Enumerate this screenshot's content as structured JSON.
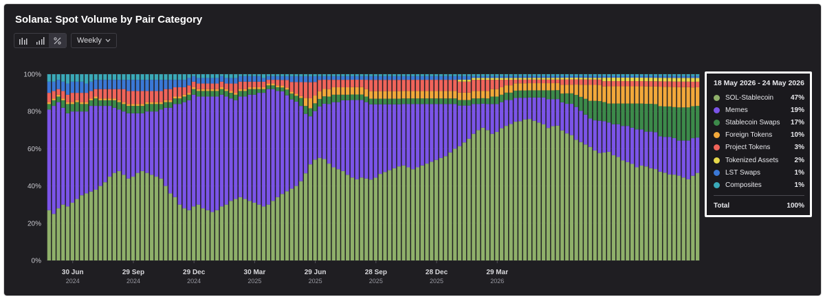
{
  "title": "Solana: Spot Volume by Pair Category",
  "toolbar": {
    "view_icons": [
      "bar-chart-icon",
      "stacked-bar-icon",
      "percent-icon"
    ],
    "interval": "Weekly"
  },
  "legend": {
    "date_range": "18 May 2026 - 24 May 2026",
    "items": [
      {
        "name": "SOL-Stablecoin",
        "value": "47%",
        "color": "#8fb06a"
      },
      {
        "name": "Memes",
        "value": "19%",
        "color": "#7b54e8"
      },
      {
        "name": "Stablecoin Swaps",
        "value": "17%",
        "color": "#3c8a4a"
      },
      {
        "name": "Foreign Tokens",
        "value": "10%",
        "color": "#f2a83a"
      },
      {
        "name": "Project Tokens",
        "value": "3%",
        "color": "#f0645a"
      },
      {
        "name": "Tokenized Assets",
        "value": "2%",
        "color": "#e6d84a"
      },
      {
        "name": "LST Swaps",
        "value": "1%",
        "color": "#3a78d6"
      },
      {
        "name": "Composites",
        "value": "1%",
        "color": "#3aa9b8"
      }
    ],
    "total_label": "Total",
    "total_value": "100%"
  },
  "chart_data": {
    "type": "bar",
    "stacked": "percent",
    "title": "Solana: Spot Volume by Pair Category",
    "ylim": [
      0,
      100
    ],
    "yticks": [
      "0%",
      "20%",
      "40%",
      "60%",
      "80%",
      "100%"
    ],
    "xticks": [
      {
        "label": "30 Jun",
        "year": "2024"
      },
      {
        "label": "29 Sep",
        "year": "2024"
      },
      {
        "label": "29 Dec",
        "year": "2024"
      },
      {
        "label": "30 Mar",
        "year": "2025"
      },
      {
        "label": "29 Jun",
        "year": "2025"
      },
      {
        "label": "28 Sep",
        "year": "2025"
      },
      {
        "label": "28 Dec",
        "year": "2025"
      },
      {
        "label": "29 Mar",
        "year": "2026"
      }
    ],
    "series": [
      {
        "name": "SOL-Stablecoin",
        "color": "#8fb06a",
        "values": [
          27,
          25,
          28,
          30,
          29,
          31,
          33,
          35,
          36,
          37,
          38,
          40,
          42,
          45,
          47,
          48,
          46,
          44,
          45,
          47,
          48,
          47,
          46,
          45,
          44,
          40,
          36,
          34,
          30,
          28,
          27,
          29,
          30,
          28,
          27,
          26,
          27,
          29,
          30,
          32,
          33,
          34,
          33,
          32,
          31,
          30,
          29,
          30,
          32,
          34,
          35,
          36,
          37,
          38,
          40,
          44,
          48,
          52,
          54,
          55,
          52,
          50,
          49,
          48,
          46,
          45,
          44,
          45,
          44,
          43,
          44,
          46,
          47,
          48,
          49,
          50,
          51,
          50,
          49,
          50,
          51,
          52,
          53,
          54,
          55,
          56,
          58,
          60,
          62,
          64,
          66,
          68,
          70,
          72,
          70,
          68,
          69,
          71,
          73,
          74,
          76,
          77,
          78,
          79,
          78,
          77,
          76,
          74,
          75,
          76,
          74,
          73,
          72,
          70,
          68,
          66,
          64,
          62,
          60,
          62,
          63,
          61,
          60,
          58,
          57,
          56,
          54,
          55,
          54,
          53,
          52,
          50,
          49,
          48,
          47,
          46,
          45,
          44,
          45,
          47
        ]
      },
      {
        "name": "Memes",
        "color": "#7b54e8",
        "values": [
          54,
          58,
          57,
          52,
          50,
          49,
          47,
          45,
          44,
          46,
          45,
          43,
          41,
          38,
          35,
          33,
          34,
          35,
          34,
          32,
          31,
          33,
          34,
          35,
          37,
          42,
          46,
          50,
          54,
          57,
          59,
          60,
          58,
          60,
          61,
          62,
          61,
          60,
          58,
          55,
          53,
          54,
          55,
          57,
          58,
          60,
          61,
          62,
          60,
          57,
          54,
          50,
          46,
          43,
          38,
          30,
          24,
          25,
          27,
          30,
          32,
          35,
          36,
          38,
          40,
          42,
          43,
          42,
          41,
          40,
          39,
          37,
          36,
          35,
          34,
          33,
          33,
          34,
          35,
          34,
          33,
          32,
          31,
          30,
          29,
          28,
          26,
          24,
          22,
          20,
          18,
          16,
          14,
          13,
          14,
          16,
          15,
          14,
          14,
          13,
          13,
          13,
          12,
          12,
          13,
          14,
          15,
          16,
          15,
          15,
          16,
          17,
          18,
          19,
          18,
          17,
          16,
          17,
          18,
          18,
          17,
          18,
          19,
          20,
          21,
          21,
          22,
          21,
          20,
          21,
          21,
          20,
          20,
          21,
          20,
          19,
          20,
          21,
          20,
          19
        ]
      },
      {
        "name": "Stablecoin Swaps",
        "color": "#3c8a4a",
        "values": [
          3,
          3,
          3,
          4,
          5,
          4,
          5,
          4,
          4,
          3,
          4,
          3,
          3,
          3,
          4,
          4,
          4,
          4,
          4,
          4,
          4,
          4,
          4,
          4,
          3,
          3,
          3,
          3,
          3,
          3,
          3,
          3,
          3,
          3,
          3,
          3,
          3,
          3,
          3,
          3,
          3,
          3,
          3,
          3,
          3,
          2,
          2,
          2,
          2,
          2,
          2,
          3,
          3,
          3,
          4,
          4,
          4,
          4,
          4,
          4,
          4,
          4,
          4,
          3,
          3,
          3,
          3,
          3,
          3,
          3,
          3,
          3,
          3,
          3,
          3,
          3,
          3,
          3,
          3,
          3,
          3,
          3,
          3,
          3,
          3,
          3,
          3,
          3,
          3,
          3,
          3,
          3,
          3,
          3,
          3,
          4,
          4,
          4,
          4,
          4,
          4,
          4,
          4,
          4,
          4,
          4,
          4,
          5,
          5,
          5,
          5,
          6,
          6,
          7,
          8,
          9,
          10,
          11,
          11,
          11,
          11,
          12,
          12,
          13,
          13,
          14,
          15,
          15,
          16,
          16,
          16,
          17,
          17,
          17,
          17,
          18,
          18,
          18,
          17,
          17
        ]
      },
      {
        "name": "Foreign Tokens",
        "color": "#f2a83a",
        "values": [
          1,
          1,
          1,
          1,
          1,
          1,
          1,
          1,
          1,
          1,
          1,
          1,
          1,
          1,
          1,
          1,
          1,
          1,
          1,
          1,
          1,
          1,
          1,
          1,
          1,
          1,
          1,
          1,
          1,
          1,
          1,
          1,
          1,
          1,
          1,
          1,
          1,
          1,
          1,
          1,
          1,
          1,
          1,
          1,
          1,
          1,
          1,
          1,
          1,
          1,
          1,
          1,
          1,
          1,
          1,
          4,
          5,
          4,
          4,
          4,
          4,
          4,
          4,
          4,
          4,
          4,
          4,
          4,
          4,
          4,
          4,
          4,
          4,
          4,
          4,
          4,
          4,
          4,
          4,
          4,
          4,
          4,
          4,
          4,
          4,
          4,
          4,
          4,
          4,
          4,
          4,
          4,
          4,
          4,
          4,
          4,
          4,
          4,
          4,
          4,
          4,
          4,
          4,
          4,
          4,
          4,
          4,
          4,
          4,
          4,
          5,
          5,
          5,
          6,
          7,
          8,
          9,
          9,
          9,
          9,
          10,
          10,
          10,
          10,
          10,
          10,
          10,
          10,
          10,
          10,
          10,
          11,
          11,
          11,
          11,
          11,
          11,
          11,
          10,
          10
        ]
      },
      {
        "name": "Project Tokens",
        "color": "#f0645a",
        "values": [
          5,
          4,
          3,
          4,
          4,
          5,
          4,
          5,
          5,
          4,
          4,
          5,
          5,
          5,
          5,
          6,
          7,
          7,
          7,
          7,
          7,
          6,
          6,
          6,
          6,
          6,
          6,
          5,
          5,
          4,
          4,
          3,
          3,
          3,
          3,
          3,
          3,
          3,
          3,
          4,
          5,
          4,
          4,
          3,
          3,
          3,
          3,
          2,
          2,
          3,
          3,
          4,
          5,
          6,
          7,
          8,
          8,
          7,
          6,
          5,
          5,
          4,
          4,
          4,
          4,
          4,
          4,
          4,
          5,
          6,
          6,
          6,
          6,
          6,
          6,
          6,
          6,
          6,
          6,
          6,
          6,
          6,
          6,
          6,
          6,
          6,
          6,
          6,
          6,
          6,
          6,
          6,
          6,
          6,
          6,
          5,
          5,
          4,
          3,
          3,
          2,
          2,
          2,
          2,
          2,
          2,
          2,
          2,
          2,
          2,
          3,
          3,
          3,
          3,
          3,
          3,
          3,
          3,
          3,
          3,
          3,
          3,
          3,
          3,
          3,
          3,
          3,
          3,
          3,
          3,
          3,
          3,
          3,
          3,
          3,
          3,
          3,
          3,
          3,
          3
        ]
      },
      {
        "name": "Tokenized Assets",
        "color": "#e6d84a",
        "values": [
          0,
          0,
          0,
          0,
          0,
          0,
          0,
          0,
          0,
          0,
          0,
          0,
          0,
          0,
          0,
          0,
          0,
          0,
          0,
          0,
          0,
          0,
          0,
          0,
          0,
          0,
          0,
          0,
          0,
          0,
          0,
          0,
          0,
          0,
          0,
          0,
          0,
          0,
          0,
          0,
          0,
          0,
          0,
          0,
          0,
          0,
          0,
          0,
          0,
          0,
          0,
          0,
          0,
          0,
          0,
          0,
          0,
          0,
          0,
          0,
          0,
          0,
          0,
          0,
          0,
          0,
          0,
          0,
          0,
          0,
          0,
          0,
          0,
          0,
          0,
          0,
          0,
          0,
          0,
          0,
          0,
          0,
          0,
          0,
          0,
          0,
          0,
          0,
          1,
          1,
          1,
          1,
          1,
          1,
          1,
          1,
          1,
          1,
          1,
          1,
          1,
          1,
          1,
          1,
          1,
          1,
          1,
          1,
          1,
          1,
          1,
          1,
          1,
          1,
          1,
          1,
          1,
          1,
          1,
          2,
          2,
          2,
          2,
          2,
          2,
          2,
          2,
          2,
          2,
          2,
          2,
          2,
          2,
          2,
          2,
          2,
          2,
          2,
          2,
          2
        ]
      },
      {
        "name": "LST Swaps",
        "color": "#3a78d6",
        "values": [
          6,
          5,
          5,
          5,
          6,
          6,
          6,
          6,
          5,
          5,
          5,
          5,
          5,
          5,
          5,
          5,
          5,
          6,
          6,
          6,
          6,
          6,
          6,
          6,
          6,
          5,
          5,
          4,
          4,
          4,
          4,
          3,
          3,
          3,
          3,
          3,
          3,
          3,
          3,
          3,
          3,
          3,
          3,
          3,
          3,
          3,
          2,
          2,
          2,
          2,
          2,
          2,
          3,
          3,
          3,
          3,
          3,
          3,
          2,
          2,
          2,
          2,
          2,
          2,
          2,
          2,
          2,
          2,
          2,
          2,
          2,
          2,
          2,
          2,
          2,
          2,
          2,
          2,
          2,
          2,
          2,
          2,
          2,
          2,
          2,
          2,
          2,
          2,
          2,
          2,
          2,
          1,
          1,
          1,
          1,
          1,
          1,
          1,
          1,
          1,
          1,
          1,
          1,
          1,
          1,
          1,
          1,
          1,
          1,
          1,
          1,
          1,
          1,
          1,
          1,
          1,
          1,
          1,
          1,
          1,
          1,
          1,
          1,
          1,
          1,
          1,
          1,
          1,
          1,
          1,
          1,
          1,
          1,
          1,
          1,
          1,
          1,
          1,
          1,
          1
        ]
      },
      {
        "name": "Composites",
        "color": "#3aa9b8",
        "values": [
          4,
          4,
          3,
          4,
          5,
          4,
          4,
          4,
          5,
          4,
          3,
          3,
          3,
          3,
          3,
          3,
          3,
          3,
          3,
          3,
          3,
          3,
          3,
          3,
          3,
          3,
          3,
          3,
          3,
          3,
          2,
          1,
          2,
          2,
          2,
          2,
          2,
          1,
          2,
          2,
          2,
          1,
          1,
          1,
          1,
          1,
          2,
          1,
          1,
          1,
          1,
          1,
          1,
          1,
          1,
          1,
          1,
          1,
          1,
          1,
          1,
          1,
          1,
          1,
          1,
          1,
          1,
          1,
          1,
          1,
          1,
          1,
          1,
          1,
          1,
          1,
          1,
          1,
          1,
          1,
          1,
          1,
          1,
          1,
          1,
          1,
          1,
          1,
          1,
          1,
          1,
          1,
          1,
          1,
          1,
          1,
          1,
          1,
          1,
          1,
          1,
          1,
          1,
          1,
          1,
          1,
          1,
          1,
          1,
          1,
          1,
          1,
          1,
          1,
          1,
          1,
          1,
          1,
          1,
          1,
          1,
          1,
          1,
          1,
          1,
          1,
          1,
          1,
          1,
          1,
          1,
          1,
          1,
          1,
          1,
          1,
          1,
          1,
          1,
          1
        ]
      }
    ]
  }
}
